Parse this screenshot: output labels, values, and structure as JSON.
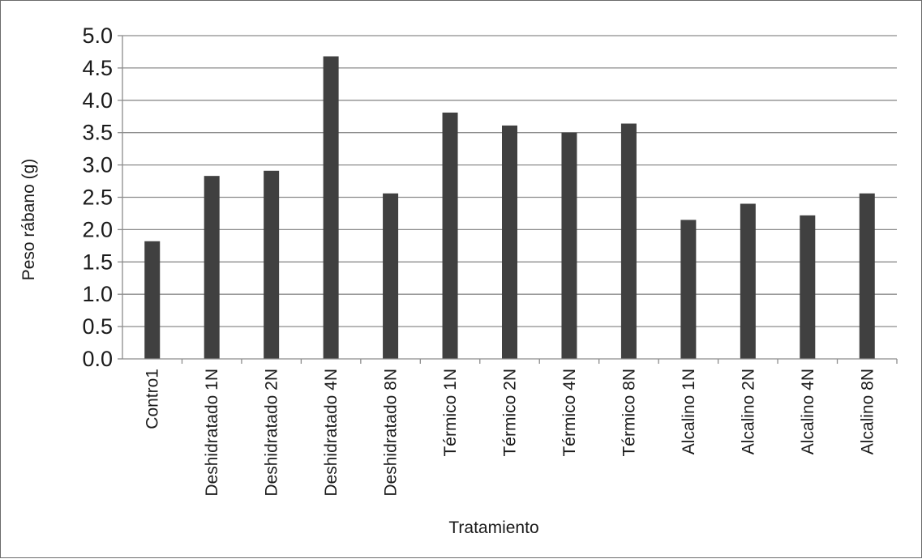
{
  "chart_data": {
    "type": "bar",
    "title": "",
    "xlabel": "Tratamiento",
    "ylabel": "Peso rábano (g)",
    "ylim": [
      0,
      5
    ],
    "ytick_step": 0.5,
    "grid": true,
    "legend": "none",
    "bar_color": "#404040",
    "categories": [
      "Contro1",
      "Deshidratado 1N",
      "Deshidratado 2N",
      "Deshidratado 4N",
      "Deshidratado 8N",
      "Térmico 1N",
      "Térmico 2N",
      "Térmico 4N",
      "Térmico 8N",
      "Alcalino 1N",
      "Alcalino 2N",
      "Alcalino 4N",
      "Alcalino 8N"
    ],
    "values": [
      1.82,
      2.83,
      2.91,
      4.68,
      2.56,
      3.81,
      3.61,
      3.5,
      3.64,
      2.15,
      2.4,
      2.22,
      2.56
    ]
  }
}
